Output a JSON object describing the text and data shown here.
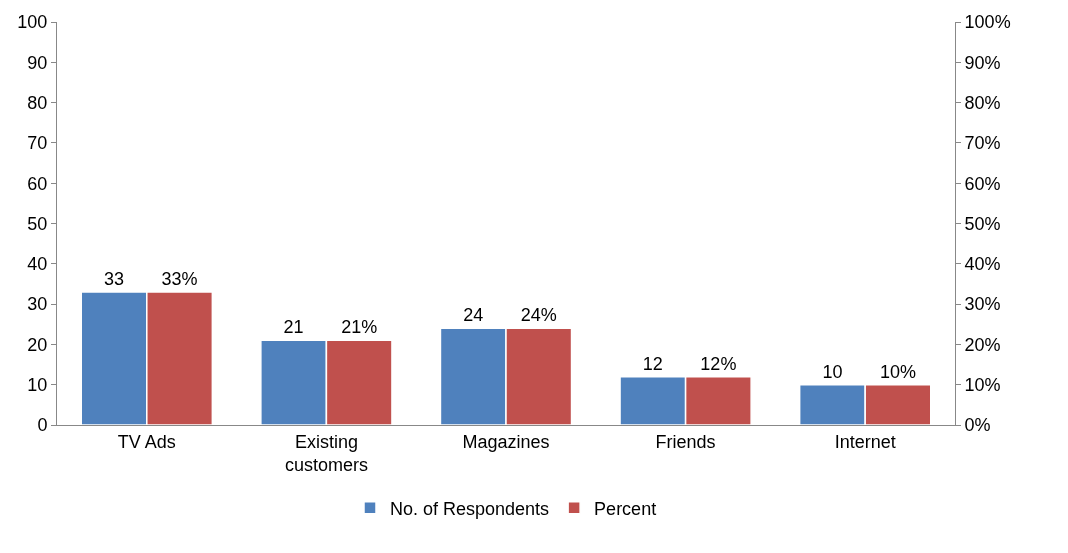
{
  "chart_data": {
    "type": "bar",
    "categories": [
      "TV Ads",
      "Existing customers",
      "Magazines",
      "Friends",
      "Internet"
    ],
    "series": [
      {
        "name": "No. of Respondents",
        "color": "#4f81bd",
        "values": [
          33,
          21,
          24,
          12,
          10
        ],
        "value_labels": [
          "33",
          "21",
          "24",
          "12",
          "10"
        ]
      },
      {
        "name": "Percent",
        "color": "#c0504d",
        "values": [
          33,
          21,
          24,
          12,
          10
        ],
        "axis": "y2",
        "value_labels": [
          "33%",
          "21%",
          "24%",
          "12%",
          "10%"
        ]
      }
    ],
    "ylim": [
      0,
      100
    ],
    "yticks": [
      0,
      10,
      20,
      30,
      40,
      50,
      60,
      70,
      80,
      90,
      100
    ],
    "y2lim": [
      0,
      100
    ],
    "y2ticks": [
      {
        "value": 0,
        "label": "0%"
      },
      {
        "value": 10,
        "label": "10%"
      },
      {
        "value": 20,
        "label": "20%"
      },
      {
        "value": 30,
        "label": "30%"
      },
      {
        "value": 40,
        "label": "40%"
      },
      {
        "value": 50,
        "label": "50%"
      },
      {
        "value": 60,
        "label": "60%"
      },
      {
        "value": 70,
        "label": "70%"
      },
      {
        "value": 80,
        "label": "80%"
      },
      {
        "value": 90,
        "label": "90%"
      },
      {
        "value": 100,
        "label": "100%"
      }
    ],
    "legend": "bottom"
  }
}
